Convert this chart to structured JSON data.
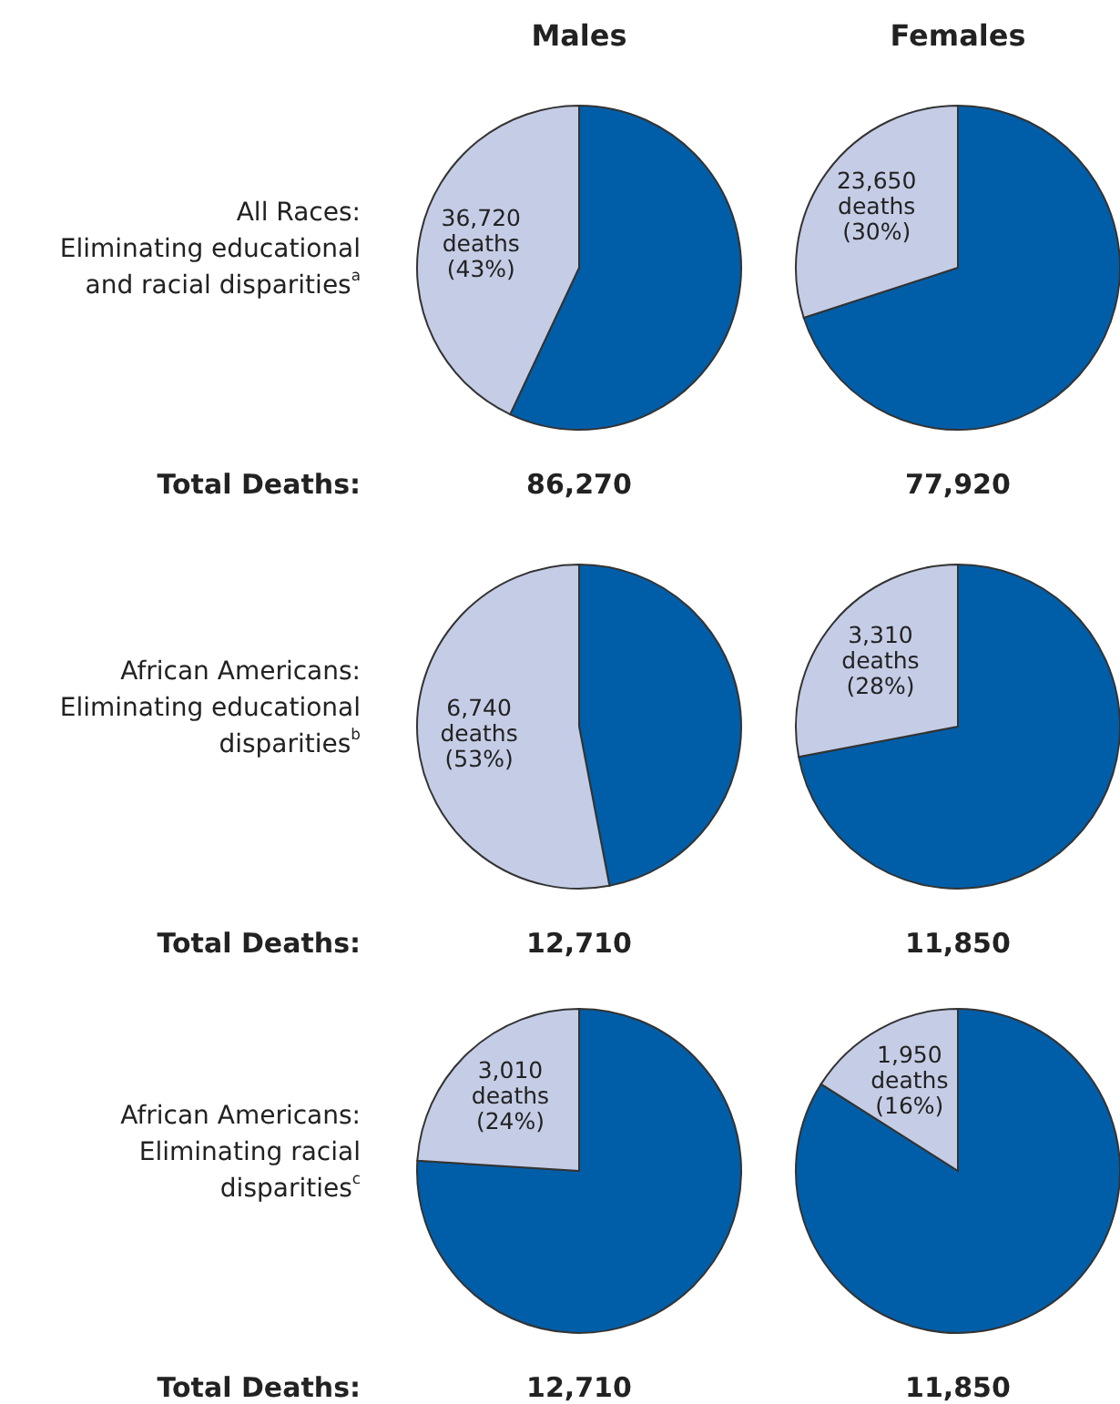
{
  "chart_data": [
    {
      "type": "pie",
      "title": "Males",
      "ylabel": "All Races:\nEliminating educational\nand racial disparities$^{a}$",
      "xlabel": "86,270",
      "annotations": [
        "Total Deaths:"
      ],
      "categories": [
        null,
        null
      ],
      "values": [
        57,
        43
      ],
      "colors": [
        "#005ea8",
        "#c5cde6"
      ],
      "value_labels": [
        null,
        "36,720\ndeaths\n(43%)"
      ]
    },
    {
      "type": "pie",
      "title": "Females",
      "xlabel": "77,920",
      "categories": [
        null,
        null
      ],
      "values": [
        70,
        30
      ],
      "colors": [
        "#005ea8",
        "#c5cde6"
      ],
      "value_labels": [
        null,
        "23,650\ndeaths\n(30%)"
      ]
    },
    {
      "type": "pie",
      "ylabel": "African Americans:\nEliminating educational\ndisparities$^{b}$",
      "xlabel": "12,710",
      "annotations": [
        "Total Deaths:"
      ],
      "categories": [
        null,
        null
      ],
      "values": [
        47,
        53
      ],
      "colors": [
        "#005ea8",
        "#c5cde6"
      ],
      "value_labels": [
        null,
        "6,740\ndeaths\n(53%)"
      ]
    },
    {
      "type": "pie",
      "xlabel": "11,850",
      "categories": [
        null,
        null
      ],
      "values": [
        72,
        28
      ],
      "colors": [
        "#005ea8",
        "#c5cde6"
      ],
      "value_labels": [
        null,
        "3,310\ndeaths\n(28%)"
      ]
    },
    {
      "type": "pie",
      "ylabel": "African Americans:\nEliminating racial\ndisparities$^{c}$",
      "xlabel": "12,710",
      "annotations": [
        "Total Deaths:"
      ],
      "categories": [
        null,
        null
      ],
      "values": [
        76,
        24
      ],
      "colors": [
        "#005ea8",
        "#c5cde6"
      ],
      "value_labels": [
        null,
        "3,010\ndeaths\n(24%)"
      ]
    },
    {
      "type": "pie",
      "xlabel": "11,850",
      "categories": [
        null,
        null
      ],
      "values": [
        84,
        16
      ],
      "colors": [
        "#005ea8",
        "#c5cde6"
      ],
      "value_labels": [
        null,
        "1,950\ndeaths\n(16%)"
      ]
    }
  ]
}
